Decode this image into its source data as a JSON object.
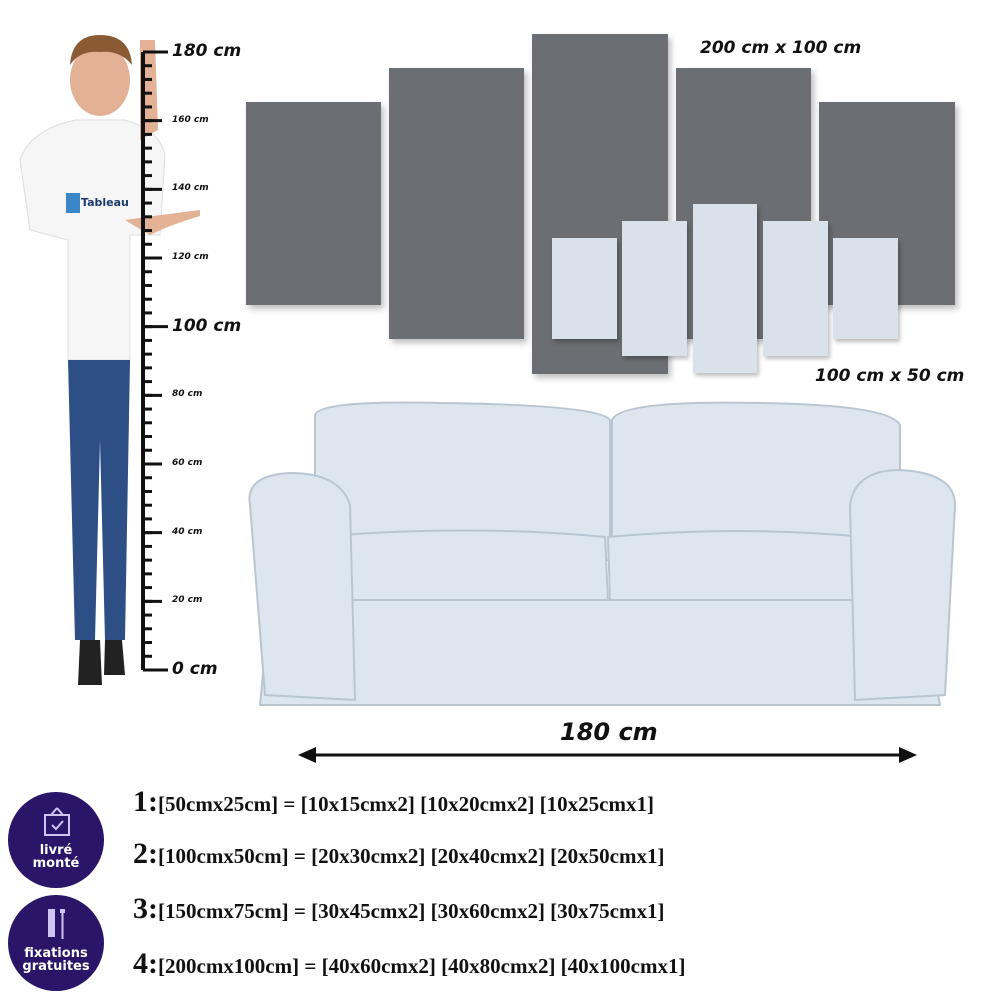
{
  "ruler": {
    "unit": "cm",
    "labels": [
      "180 cm",
      "160 cm",
      "140 cm",
      "120 cm",
      "100 cm",
      "80 cm",
      "60 cm",
      "40 cm",
      "20 cm",
      "0 cm"
    ]
  },
  "person": {
    "shirt_logo": "Tableau"
  },
  "panels": {
    "large_label": "200 cm x 100 cm",
    "small_label": "100 cm x 50 cm",
    "dark_color": "#6b6e72",
    "light_color": "#d9e1ea"
  },
  "sofa": {
    "width_label": "180 cm"
  },
  "sizes": [
    {
      "num": "1:",
      "text": "[50cmx25cm] = [10x15cmx2] [10x20cmx2] [10x25cmx1]"
    },
    {
      "num": "2:",
      "text": "[100cmx50cm] = [20x30cmx2] [20x40cmx2] [20x50cmx1]"
    },
    {
      "num": "3:",
      "text": "[150cmx75cm] = [30x45cmx2] [30x60cmx2] [30x75cmx1]"
    },
    {
      "num": "4:",
      "text": "[200cmx100cm] = [40x60cmx2] [40x80cmx2] [40x100cmx1]"
    }
  ],
  "badges": [
    {
      "icon": "framed-check-icon",
      "label": "livré monté"
    },
    {
      "icon": "screws-icon",
      "label": "fixations gratuites"
    }
  ],
  "badge_color": "#2a1568"
}
